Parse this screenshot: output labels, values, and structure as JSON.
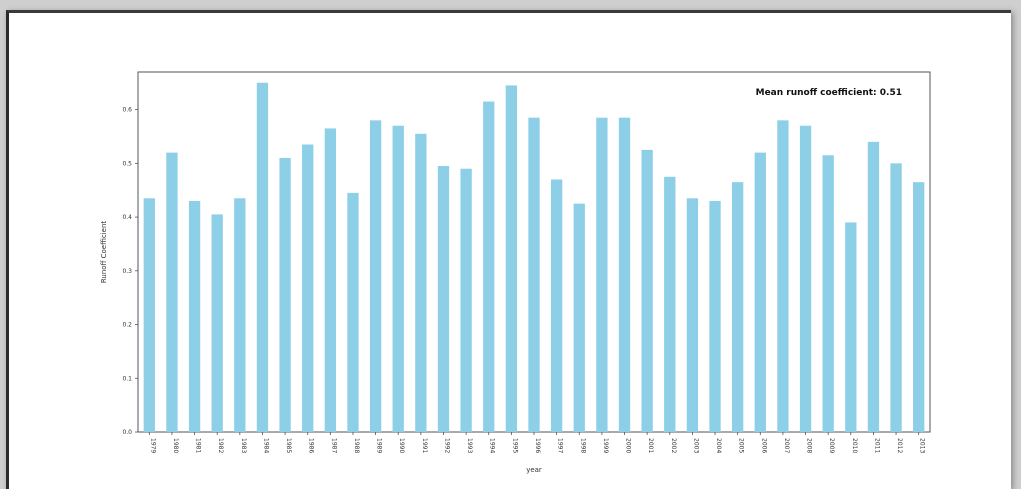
{
  "chart_data": {
    "type": "bar",
    "title": "",
    "annotation": "Mean runoff coefficient: 0.51",
    "xlabel": "year",
    "ylabel": "Runoff Coefficient",
    "ylim": [
      0,
      0.67
    ],
    "yticks": [
      "0.0",
      "0.1",
      "0.2",
      "0.3",
      "0.4",
      "0.5",
      "0.6"
    ],
    "categories": [
      "1979",
      "1980",
      "1981",
      "1982",
      "1983",
      "1984",
      "1985",
      "1986",
      "1987",
      "1988",
      "1989",
      "1990",
      "1991",
      "1992",
      "1993",
      "1994",
      "1995",
      "1996",
      "1997",
      "1998",
      "1999",
      "2000",
      "2001",
      "2002",
      "2003",
      "2004",
      "2005",
      "2006",
      "2007",
      "2008",
      "2009",
      "2010",
      "2011",
      "2012",
      "2013"
    ],
    "values": [
      0.435,
      0.52,
      0.43,
      0.405,
      0.435,
      0.65,
      0.51,
      0.535,
      0.565,
      0.445,
      0.58,
      0.57,
      0.555,
      0.495,
      0.49,
      0.615,
      0.645,
      0.585,
      0.47,
      0.425,
      0.585,
      0.585,
      0.525,
      0.475,
      0.435,
      0.43,
      0.465,
      0.52,
      0.58,
      0.57,
      0.515,
      0.39,
      0.54,
      0.5,
      0.465
    ],
    "bar_color": "#8ecfe8",
    "grid": false,
    "legend": "none"
  }
}
